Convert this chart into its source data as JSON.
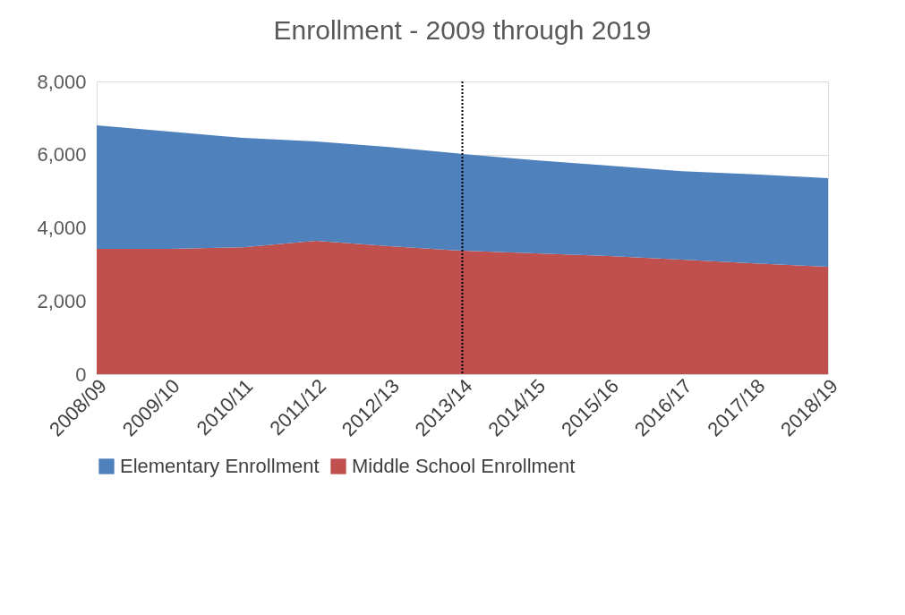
{
  "chart_data": {
    "type": "area",
    "title": "Enrollment - 2009 through 2019",
    "stacked": true,
    "categories": [
      "2008/09",
      "2009/10",
      "2010/11",
      "2011/12",
      "2012/13",
      "2013/14",
      "2014/15",
      "2015/16",
      "2016/17",
      "2017/18",
      "2018/19"
    ],
    "series": [
      {
        "name": "Middle School Enrollment",
        "color": "#c0504d",
        "values": [
          3425,
          3425,
          3470,
          3645,
          3500,
          3375,
          3300,
          3230,
          3130,
          3030,
          2935
        ]
      },
      {
        "name": "Elementary Enrollment",
        "color": "#4f81bd",
        "values": [
          3375,
          3205,
          2990,
          2715,
          2710,
          2645,
          2550,
          2470,
          2420,
          2430,
          2425
        ]
      }
    ],
    "ylim": [
      0,
      8000
    ],
    "yticks": [
      {
        "value": 0,
        "label": "0"
      },
      {
        "value": 2000,
        "label": "2,000"
      },
      {
        "value": 4000,
        "label": "4,000"
      },
      {
        "value": 6000,
        "label": "6,000"
      },
      {
        "value": 8000,
        "label": "8,000"
      }
    ],
    "grid": "y",
    "legend": "bottom",
    "ref_lines": [
      {
        "axis": "x",
        "value": "2013/14",
        "line_style": "dotted",
        "color": "#000000"
      }
    ]
  }
}
